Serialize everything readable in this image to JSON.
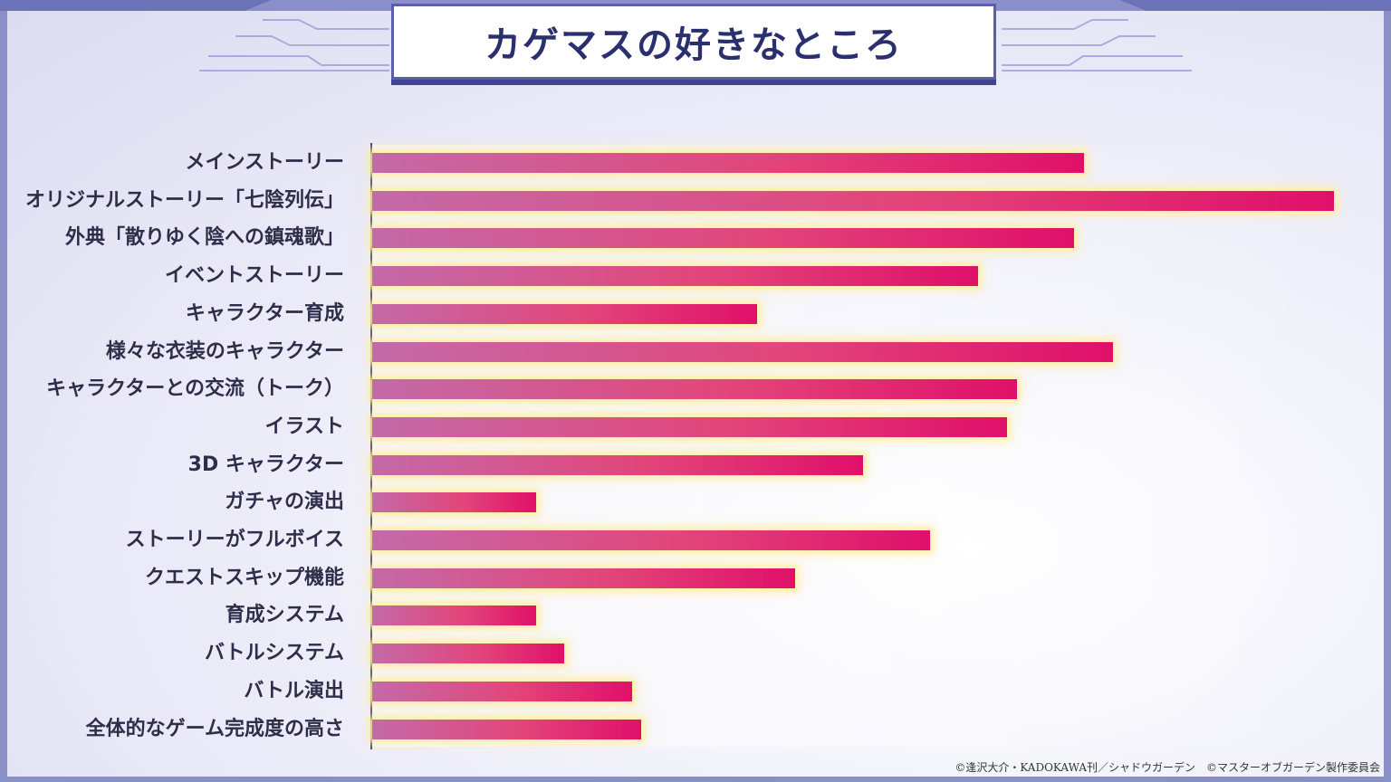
{
  "title": "カゲマスの好きなところ",
  "credit": "©逢沢大介・KADOKAWA刊／シャドウガーデン　©マスターオブガーデン製作委員会",
  "colors": {
    "frame": "#8a8fc8",
    "title_border": "#5a5fa8",
    "bar_start": "#c46aa8",
    "bar_end": "#e0106a",
    "bar_glow": "#ffeea0"
  },
  "chart_data": {
    "type": "bar",
    "orientation": "horizontal",
    "title": "カゲマスの好きなところ",
    "xlabel": "",
    "ylabel": "",
    "xlim": [
      0,
      100
    ],
    "axis_ticks": false,
    "grid": false,
    "categories": [
      "メインストーリー",
      "オリジナルストーリー「七陰列伝」",
      "外典「散りゆく陰への鎮魂歌」",
      "イベントストーリー",
      "キャラクター育成",
      "様々な衣装のキャラクター",
      "キャラクターとの交流（トーク）",
      "イラスト",
      "3D キャラクター",
      "ガチャの演出",
      "ストーリーがフルボイス",
      "クエストスキップ機能",
      "育成システム",
      "バトルシステム",
      "バトル演出",
      "全体的なゲーム完成度の高さ"
    ],
    "values": [
      74,
      100,
      73,
      63,
      40,
      77,
      67,
      66,
      51,
      17,
      58,
      44,
      17,
      20,
      27,
      28
    ]
  }
}
